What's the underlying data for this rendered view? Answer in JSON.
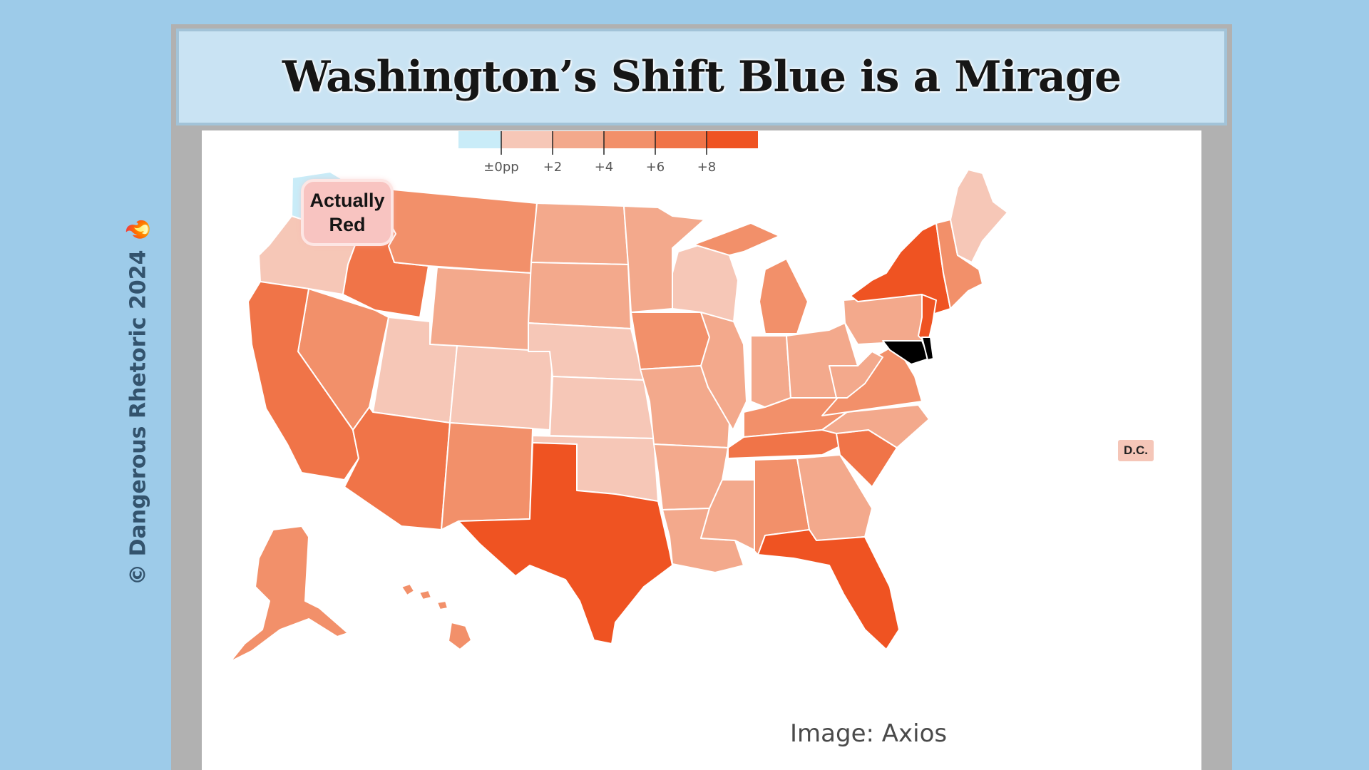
{
  "title": "Washington’s Shift Blue is a Mirage",
  "watermark": "© Dangerous Rhetoric 2024",
  "watermark_icon": "flame-icon",
  "callout": "Actually Red",
  "dc_label": "D.C.",
  "credit": "Image: Axios",
  "legend": {
    "ticks": [
      "±0pp",
      "+2",
      "+4",
      "+6",
      "+8"
    ],
    "colors": [
      "#c9ecf8",
      "#f6c7b7",
      "#f3a98c",
      "#f2906a",
      "#f07448",
      "#ef5322"
    ]
  },
  "colors": {
    "background": "#9dcbe9",
    "title_band": "#c9e3f3",
    "blue": "#c9ecf8",
    "light": "#f6c7b7",
    "medium": "#f3a98c",
    "strong": "#f2906a",
    "heavy": "#f07448",
    "max": "#ef5322"
  },
  "state_shifts": {
    "WA": "blue",
    "OR": "light",
    "CA": "heavy",
    "NV": "strong",
    "ID": "heavy",
    "MT": "strong",
    "WY": "medium",
    "UT": "light",
    "AZ": "heavy",
    "CO": "light",
    "NM": "strong",
    "ND": "medium",
    "SD": "medium",
    "NE": "light",
    "KS": "light",
    "OK": "light",
    "TX": "max",
    "MN": "medium",
    "IA": "strong",
    "MO": "medium",
    "AR": "medium",
    "LA": "medium",
    "WI": "light",
    "IL": "medium",
    "MS": "medium",
    "MI": "strong",
    "IN": "medium",
    "OH": "medium",
    "KY": "strong",
    "TN": "heavy",
    "AL": "strong",
    "GA": "medium",
    "FL": "max",
    "SC": "heavy",
    "NC": "medium",
    "VA": "strong",
    "WV": "medium",
    "PA": "medium",
    "NY": "max",
    "NJ": "max",
    "NE_STATES": "strong",
    "ME": "light",
    "AK": "strong",
    "HI": "strong",
    "DC": "light"
  }
}
